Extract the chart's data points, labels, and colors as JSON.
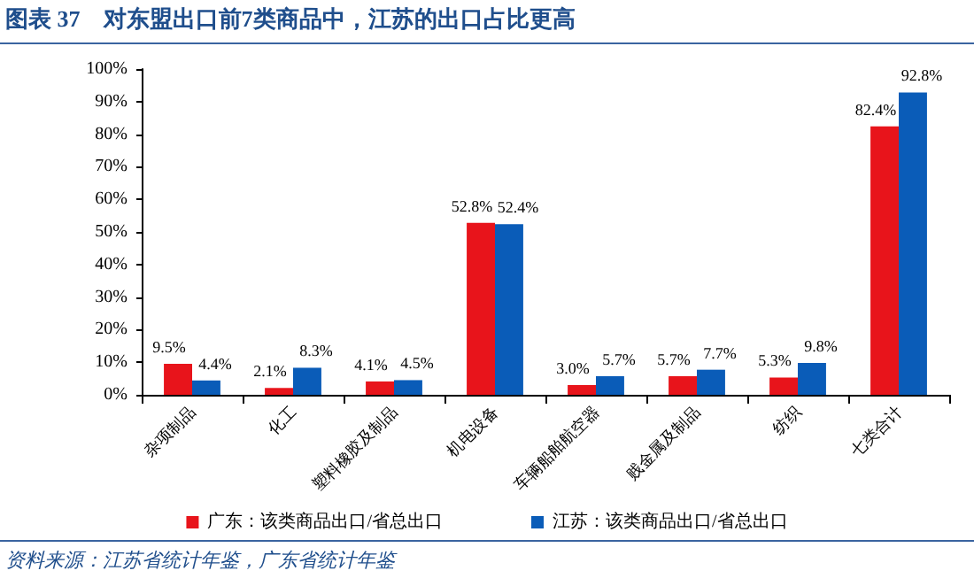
{
  "chart_data": {
    "type": "bar",
    "title": "图表 37　对东盟出口前7类商品中，江苏的出口占比更高",
    "categories": [
      "杂项制品",
      "化工",
      "塑料橡胶及制品",
      "机电设备",
      "车辆船舶航空器",
      "贱金属及制品",
      "纺织",
      "七类合计"
    ],
    "series": [
      {
        "name": "广东：该类商品出口/省总出口",
        "color": "#e8141b",
        "values": [
          9.5,
          2.1,
          4.1,
          52.8,
          3.0,
          5.7,
          5.3,
          82.4
        ],
        "value_labels": [
          "9.5%",
          "2.1%",
          "4.1%",
          "52.8%",
          "3.0%",
          "5.7%",
          "5.3%",
          "82.4%"
        ]
      },
      {
        "name": "江苏：该类商品出口/省总出口",
        "color": "#0a5cb8",
        "values": [
          4.4,
          8.3,
          4.5,
          52.4,
          5.7,
          7.7,
          9.8,
          92.8
        ],
        "value_labels": [
          "4.4%",
          "8.3%",
          "4.5%",
          "52.4%",
          "5.7%",
          "7.7%",
          "9.8%",
          "92.8%"
        ]
      }
    ],
    "ylim": [
      0,
      100
    ],
    "yticks": [
      {
        "value": 0,
        "label": "0%"
      },
      {
        "value": 10,
        "label": "10%"
      },
      {
        "value": 20,
        "label": "20%"
      },
      {
        "value": 30,
        "label": "30%"
      },
      {
        "value": 40,
        "label": "40%"
      },
      {
        "value": 50,
        "label": "50%"
      },
      {
        "value": 60,
        "label": "60%"
      },
      {
        "value": 70,
        "label": "70%"
      },
      {
        "value": 80,
        "label": "80%"
      },
      {
        "value": 90,
        "label": "90%"
      },
      {
        "value": 100,
        "label": "100%"
      }
    ],
    "grid": false,
    "legend": "bottom",
    "annotations": [
      "资料来源：江苏省统计年鉴，广东省统计年鉴"
    ]
  }
}
